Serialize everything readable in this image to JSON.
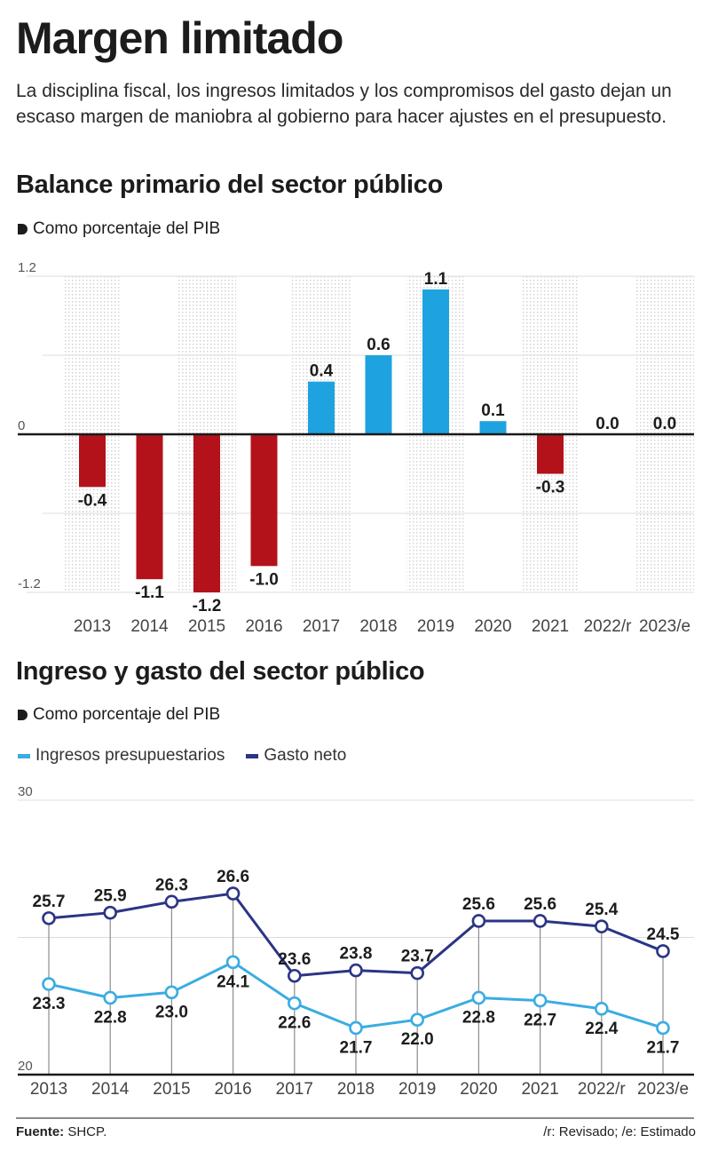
{
  "header": {
    "title": "Margen limitado",
    "subtitle": "La disciplina fiscal, los ingresos limitados y los compromisos del gasto dejan un escaso margen de maniobra al gobierno para hacer ajustes en el presupuesto."
  },
  "colors": {
    "positive_bar": "#1fa3e0",
    "negative_bar": "#b3121b",
    "ingresos_line": "#3aace3",
    "gasto_line": "#2b3585",
    "dot_pattern": "#c9c9c9"
  },
  "chart_data": [
    {
      "type": "bar",
      "title": "Balance primario del sector público",
      "unit_note": "Como porcentaje del PIB",
      "categories": [
        "2013",
        "2014",
        "2015",
        "2016",
        "2017",
        "2018",
        "2019",
        "2020",
        "2021",
        "2022/r",
        "2023/e"
      ],
      "values": [
        -0.4,
        -1.1,
        -1.2,
        -1.0,
        0.4,
        0.6,
        1.1,
        0.1,
        -0.3,
        0.0,
        0.0
      ],
      "value_labels": [
        "-0.4",
        "-1.1",
        "-1.2",
        "-1.0",
        "0.4",
        "0.6",
        "1.1",
        "0.1",
        "-0.3",
        "0.0",
        "0.0"
      ],
      "ylim": [
        -1.2,
        1.2
      ],
      "ytick_labels": [
        "1.2",
        "0",
        "-1.2"
      ],
      "yticks": [
        1.2,
        0,
        -1.2
      ],
      "gridlines": [
        1.2,
        0.6,
        -0.6,
        -1.2
      ],
      "xlabel": "",
      "ylabel": "",
      "grid": true
    },
    {
      "type": "line",
      "title": "Ingreso y gasto del sector público",
      "unit_note": "Como porcentaje del PIB",
      "categories": [
        "2013",
        "2014",
        "2015",
        "2016",
        "2017",
        "2018",
        "2019",
        "2020",
        "2021",
        "2022/r",
        "2023/e"
      ],
      "series": [
        {
          "name": "Ingresos presupuestarios",
          "values": [
            23.3,
            22.8,
            23.0,
            24.1,
            22.6,
            21.7,
            22.0,
            22.8,
            22.7,
            22.4,
            21.7
          ],
          "value_labels": [
            "23.3",
            "22.8",
            "23.0",
            "24.1",
            "22.6",
            "21.7",
            "22.0",
            "22.8",
            "22.7",
            "22.4",
            "21.7"
          ],
          "label_position": "below"
        },
        {
          "name": "Gasto neto",
          "values": [
            25.7,
            25.9,
            26.3,
            26.6,
            23.6,
            23.8,
            23.7,
            25.6,
            25.6,
            25.4,
            24.5
          ],
          "value_labels": [
            "25.7",
            "25.9",
            "26.3",
            "26.6",
            "23.6",
            "23.8",
            "23.7",
            "25.6",
            "25.6",
            "25.4",
            "24.5"
          ],
          "label_position": "above"
        }
      ],
      "ylim": [
        20,
        30
      ],
      "ytick_labels": [
        "30",
        "20"
      ],
      "yticks": [
        30,
        20
      ],
      "gridlines": [
        30,
        25
      ],
      "legend_position": "top-left",
      "xlabel": "",
      "ylabel": "",
      "grid": true
    }
  ],
  "footer": {
    "source_label": "Fuente:",
    "source_value": "SHCP.",
    "notes": "/r: Revisado; /e: Estimado"
  }
}
